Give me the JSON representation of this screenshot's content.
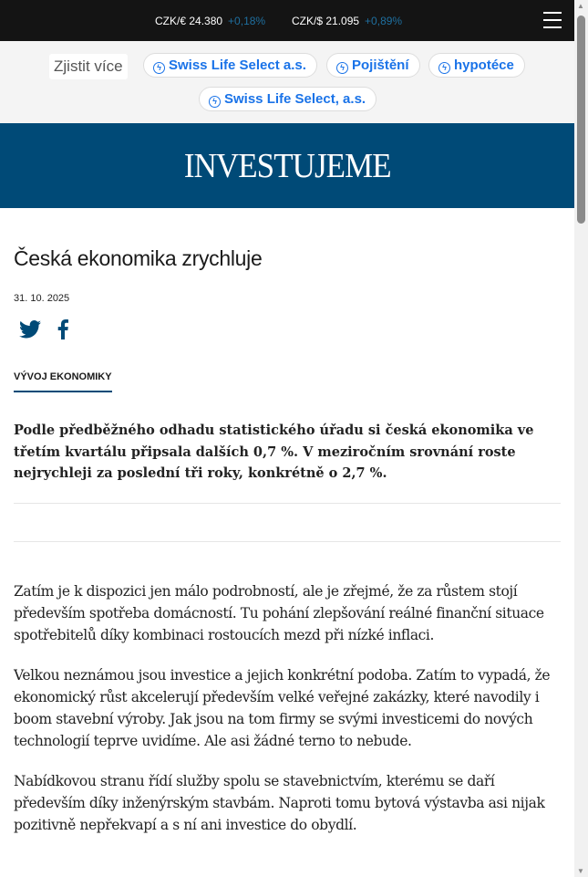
{
  "topbar": {
    "rates": [
      {
        "label": "CZK/€ 24.380",
        "change": "+0,18%"
      },
      {
        "label": "CZK/$ 21.095",
        "change": "+0,89%"
      }
    ],
    "menu_icon": "hamburger-icon"
  },
  "ads": {
    "label": "Zjistit více",
    "chips": [
      "Swiss Life Select a.s.",
      "Pojištění",
      "hypotéce",
      "Swiss Life Select, a.s."
    ],
    "chip_icon": "lightning-circle-icon",
    "chip_color": "#1a73e8"
  },
  "brand": {
    "logo": "INVESTUJEME",
    "color": "#004a77"
  },
  "article": {
    "title": "Česká ekonomika zrychluje",
    "date": "31. 10. 2025",
    "share_icons": [
      "twitter-icon",
      "facebook-icon"
    ],
    "category": "VÝVOJ EKONOMIKY",
    "lead": "Podle předběžného odhadu statistického úřadu si česká ekonomika ve třetím kvartálu připsala dalších 0,7 %. V meziročním srovnání roste nejrychleji za poslední tři roky, konkrétně o 2,7 %.",
    "paragraphs": [
      "Zatím je k dispozici jen málo podrobností, ale je zřejmé, že za růstem stojí především spotřeba domácností. Tu pohání zlepšování reálné finanční situace spotřebitelů díky kombinaci rostoucích mezd při nízké inflaci.",
      "Velkou neznámou jsou investice a jejich konkrétní podoba. Zatím to vypadá, že ekonomický růst akcelerují především velké veřejné zakázky, které navodily i boom stavební výroby. Jak jsou na tom firmy se svými investicemi do nových technologií teprve uvidíme. Ale asi žádné terno to nebude.",
      "Nabídkovou stranu řídí služby spolu se stavebnictvím, kterému se daří především díky inženýrským stavbám. Naproti tomu bytová výstavba asi nijak pozitivně nepřekvapí a s ní ani investice do obydlí."
    ]
  }
}
